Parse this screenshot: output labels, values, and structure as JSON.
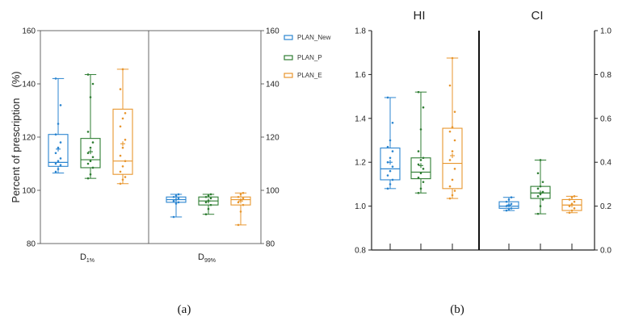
{
  "colors": {
    "PLAN_New": "#2b85d0",
    "PLAN_P": "#2e7d32",
    "PLAN_E": "#e8962e"
  },
  "chart_data": [
    {
      "type": "box",
      "panel_label": "(a)",
      "ylabel": "Percent of prescription　(%)",
      "ylim": [
        80,
        160
      ],
      "yticks": [
        80,
        100,
        120,
        140,
        160
      ],
      "ylim_right": [
        80,
        160
      ],
      "yticks_right": [
        80,
        100,
        120,
        140,
        160
      ],
      "legend": {
        "position": "top-right",
        "entries": [
          "PLAN_New",
          "PLAN_P",
          "PLAN_E"
        ]
      },
      "groups": [
        {
          "label_main": "D",
          "label_sub": "1%",
          "boxes": [
            {
              "series": "PLAN_New",
              "min": 106.5,
              "q1": 109,
              "median": 110.5,
              "q3": 121,
              "max": 142,
              "mean": 115.5,
              "points": [
                107,
                108,
                109.5,
                110,
                111,
                112,
                114,
                116,
                118,
                121,
                125,
                132,
                142
              ]
            },
            {
              "series": "PLAN_P",
              "min": 104.5,
              "q1": 108.5,
              "median": 111.5,
              "q3": 119.5,
              "max": 143.5,
              "mean": 114.5,
              "points": [
                104.5,
                106,
                108.5,
                110,
                111,
                112.5,
                114,
                116,
                118,
                122,
                135,
                140,
                143.5
              ]
            },
            {
              "series": "PLAN_E",
              "min": 102.5,
              "q1": 106,
              "median": 111,
              "q3": 130.5,
              "max": 145.5,
              "mean": 117.5,
              "points": [
                102.5,
                104,
                105,
                107,
                109,
                111,
                113,
                116,
                119,
                124,
                127,
                129,
                138,
                145.5
              ]
            }
          ]
        },
        {
          "label_main": "D",
          "label_sub": "99%",
          "boxes": [
            {
              "series": "PLAN_New",
              "min": 90,
              "q1": 95.5,
              "median": 96.5,
              "q3": 97.5,
              "max": 98.5,
              "mean": 96.5,
              "points": [
                90,
                95,
                95.5,
                96,
                96.5,
                97,
                97.5,
                98,
                98.5
              ]
            },
            {
              "series": "PLAN_P",
              "min": 91,
              "q1": 94.5,
              "median": 96,
              "q3": 97.5,
              "max": 98.5,
              "mean": 96,
              "points": [
                91,
                93,
                94.5,
                95.5,
                96,
                97,
                97.5,
                98,
                98.5
              ]
            },
            {
              "series": "PLAN_E",
              "min": 87,
              "q1": 94.5,
              "median": 96.5,
              "q3": 97.5,
              "max": 99,
              "mean": 96,
              "points": [
                87,
                92,
                94.5,
                95.5,
                96.5,
                97,
                97.5,
                98.5,
                99
              ]
            }
          ]
        }
      ]
    },
    {
      "type": "box",
      "panel_label": "(b)",
      "ylim": [
        0.8,
        1.8
      ],
      "yticks": [
        "0.8",
        "1.0",
        "1.2",
        "1.4",
        "1.6",
        "1.8"
      ],
      "ylim_right": [
        0.0,
        1.0
      ],
      "yticks_right": [
        "0.0",
        "0.2",
        "0.4",
        "0.6",
        "0.8",
        "1.0"
      ],
      "groups": [
        {
          "header": "HI",
          "boxes": [
            {
              "series": "PLAN_New",
              "min": 1.08,
              "q1": 1.12,
              "median": 1.17,
              "q3": 1.265,
              "max": 1.495,
              "mean": 1.2,
              "points": [
                1.08,
                1.1,
                1.12,
                1.14,
                1.16,
                1.18,
                1.2,
                1.22,
                1.25,
                1.27,
                1.3,
                1.38,
                1.495
              ]
            },
            {
              "series": "PLAN_P",
              "min": 1.06,
              "q1": 1.125,
              "median": 1.155,
              "q3": 1.22,
              "max": 1.52,
              "mean": 1.185,
              "points": [
                1.06,
                1.08,
                1.11,
                1.13,
                1.15,
                1.17,
                1.19,
                1.21,
                1.22,
                1.25,
                1.35,
                1.45,
                1.52
              ]
            },
            {
              "series": "PLAN_E",
              "min": 1.035,
              "q1": 1.08,
              "median": 1.195,
              "q3": 1.355,
              "max": 1.675,
              "mean": 1.23,
              "points": [
                1.035,
                1.05,
                1.07,
                1.09,
                1.12,
                1.17,
                1.21,
                1.25,
                1.3,
                1.34,
                1.36,
                1.43,
                1.55,
                1.675
              ]
            }
          ]
        },
        {
          "header": "CI",
          "boxes": [
            {
              "series": "PLAN_New",
              "min": 0.18,
              "q1": 0.19,
              "median": 0.2,
              "q3": 0.22,
              "max": 0.24,
              "mean": 0.205,
              "points": [
                0.18,
                0.185,
                0.19,
                0.2,
                0.205,
                0.21,
                0.22,
                0.23,
                0.24
              ]
            },
            {
              "series": "PLAN_P",
              "min": 0.165,
              "q1": 0.235,
              "median": 0.26,
              "q3": 0.29,
              "max": 0.41,
              "mean": 0.26,
              "points": [
                0.165,
                0.2,
                0.23,
                0.245,
                0.255,
                0.265,
                0.28,
                0.29,
                0.31,
                0.35,
                0.41
              ]
            },
            {
              "series": "PLAN_E",
              "min": 0.17,
              "q1": 0.18,
              "median": 0.205,
              "q3": 0.23,
              "max": 0.245,
              "mean": 0.205,
              "points": [
                0.17,
                0.18,
                0.19,
                0.2,
                0.21,
                0.22,
                0.23,
                0.24,
                0.245
              ]
            }
          ]
        }
      ]
    }
  ]
}
